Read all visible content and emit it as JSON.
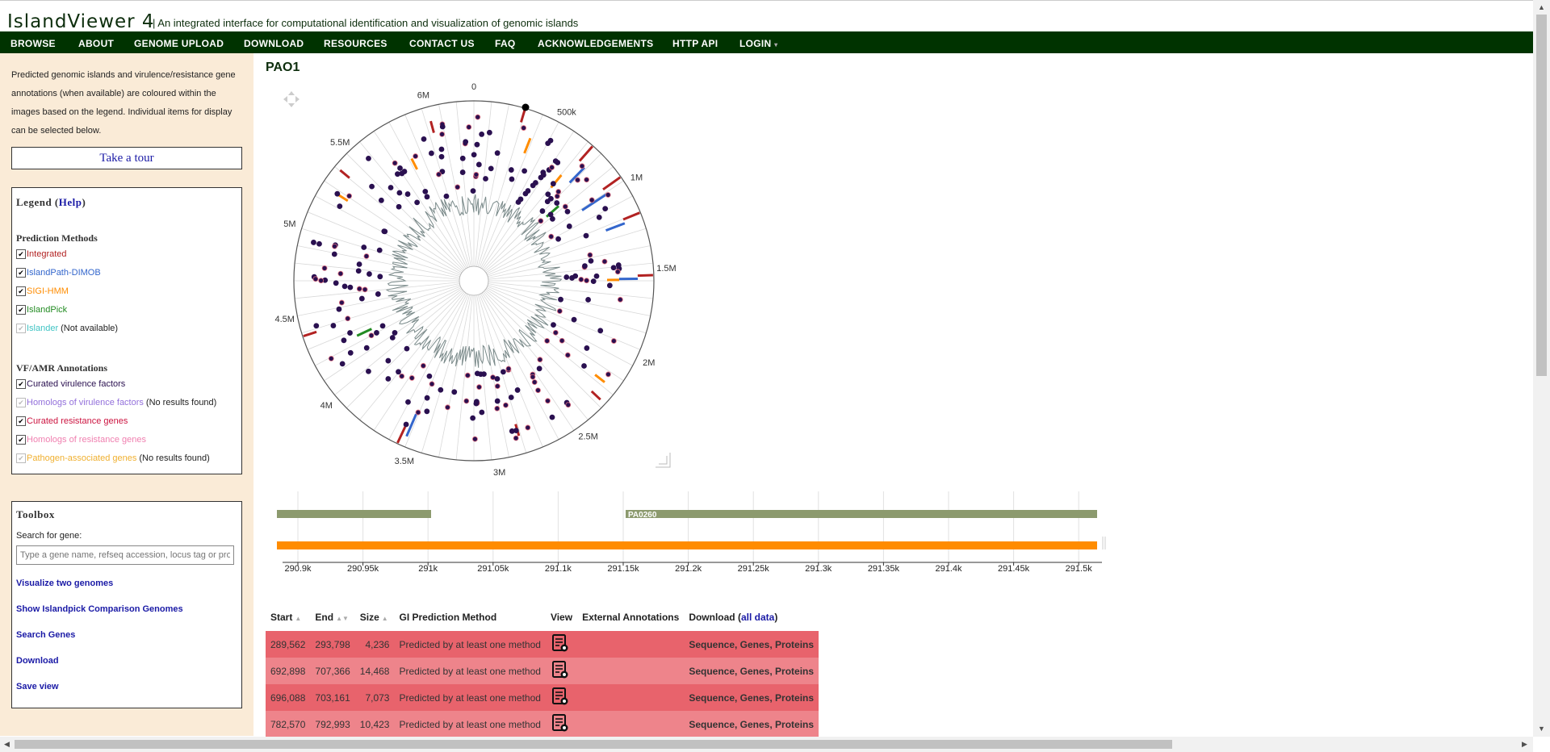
{
  "header": {
    "logo": "IslandViewer 4",
    "tagline": "| An integrated interface for computational identification and visualization of genomic islands"
  },
  "nav": [
    {
      "label": "BROWSE"
    },
    {
      "label": "ABOUT"
    },
    {
      "label": "GENOME UPLOAD"
    },
    {
      "label": "DOWNLOAD"
    },
    {
      "label": "RESOURCES"
    },
    {
      "label": "CONTACT US"
    },
    {
      "label": "FAQ"
    },
    {
      "label": "ACKNOWLEDGEMENTS"
    },
    {
      "label": "HTTP API"
    },
    {
      "label": "LOGIN"
    }
  ],
  "sidebar": {
    "intro": "Predicted genomic islands and virulence/resistance gene annotations (when available) are coloured within the images based on the legend. Individual items for display can be selected below.",
    "tour_label": "Take a tour",
    "legend": {
      "title_prefix": "Legend (",
      "help": "Help",
      "title_suffix": ")",
      "prediction_heading": "Prediction Methods",
      "prediction_items": [
        {
          "label": "Integrated",
          "color": "#b22222",
          "checked": true,
          "note": ""
        },
        {
          "label": "IslandPath-DIMOB",
          "color": "#3366cc",
          "checked": true,
          "note": ""
        },
        {
          "label": "SIGI-HMM",
          "color": "#ff8c00",
          "checked": true,
          "note": ""
        },
        {
          "label": "IslandPick",
          "color": "#228b22",
          "checked": true,
          "note": ""
        },
        {
          "label": "Islander",
          "color": "#40c4c4",
          "checked": false,
          "note": "(Not available)"
        }
      ],
      "annotation_heading": "VF/AMR Annotations",
      "annotation_items": [
        {
          "label": "Curated virulence factors",
          "color": "#2a1050",
          "checked": true,
          "note": ""
        },
        {
          "label": "Homologs of virulence factors",
          "color": "#9370db",
          "checked": false,
          "note": "(No results found)"
        },
        {
          "label": "Curated resistance genes",
          "color": "#cc1440",
          "checked": true,
          "note": ""
        },
        {
          "label": "Homologs of resistance genes",
          "color": "#f080b0",
          "checked": true,
          "note": ""
        },
        {
          "label": "Pathogen-associated genes",
          "color": "#f0b030",
          "checked": false,
          "note": "(No results found)"
        }
      ]
    },
    "toolbox": {
      "title": "Toolbox",
      "search_label": "Search for gene:",
      "search_placeholder": "Type a gene name, refseq accession, locus tag or product",
      "links": [
        {
          "label": "Visualize two genomes"
        },
        {
          "label": "Show Islandpick Comparison Genomes"
        },
        {
          "label": "Search Genes"
        },
        {
          "label": "Download"
        },
        {
          "label": "Save view"
        }
      ]
    }
  },
  "main": {
    "genome_title": "PAO1",
    "circular_plot": {
      "zero_label": "0",
      "tick_labels": [
        "500k",
        "1M",
        "1.5M",
        "2M",
        "2.5M",
        "3M",
        "3.5M",
        "4M",
        "4.5M",
        "5M",
        "5.5M",
        "6M"
      ],
      "genome_length": 6264404,
      "island_colors": {
        "integrated": "#b22222",
        "dimob": "#3366cc",
        "sigi": "#ff8c00",
        "islandpick": "#228b22",
        "vf": "#2a1050",
        "vf_outline": "#e07080"
      }
    },
    "linear_track": {
      "gene_label": "PA0260",
      "axis_labels": [
        "290.9k",
        "290.95k",
        "291k",
        "291.05k",
        "291.1k",
        "291.15k",
        "291.2k",
        "291.25k",
        "291.3k",
        "291.35k",
        "291.4k",
        "291.45k",
        "291.5k"
      ],
      "gene_color": "#8c9a6e",
      "island_color": "#ff8c00"
    },
    "table": {
      "headers": {
        "start": "Start",
        "end": "End",
        "size": "Size",
        "method": "GI Prediction Method",
        "view": "View",
        "external": "External Annotations",
        "download_prefix": "Download (",
        "download_link": "all data",
        "download_suffix": ")"
      },
      "rows": [
        {
          "start": "289,562",
          "end": "293,798",
          "size": "4,236",
          "method": "Predicted by at least one method",
          "download": "Sequence, Genes, Proteins"
        },
        {
          "start": "692,898",
          "end": "707,366",
          "size": "14,468",
          "method": "Predicted by at least one method",
          "download": "Sequence, Genes, Proteins"
        },
        {
          "start": "696,088",
          "end": "703,161",
          "size": "7,073",
          "method": "Predicted by at least one method",
          "download": "Sequence, Genes, Proteins"
        },
        {
          "start": "782,570",
          "end": "792,993",
          "size": "10,423",
          "method": "Predicted by at least one method",
          "download": "Sequence, Genes, Proteins"
        }
      ]
    }
  }
}
